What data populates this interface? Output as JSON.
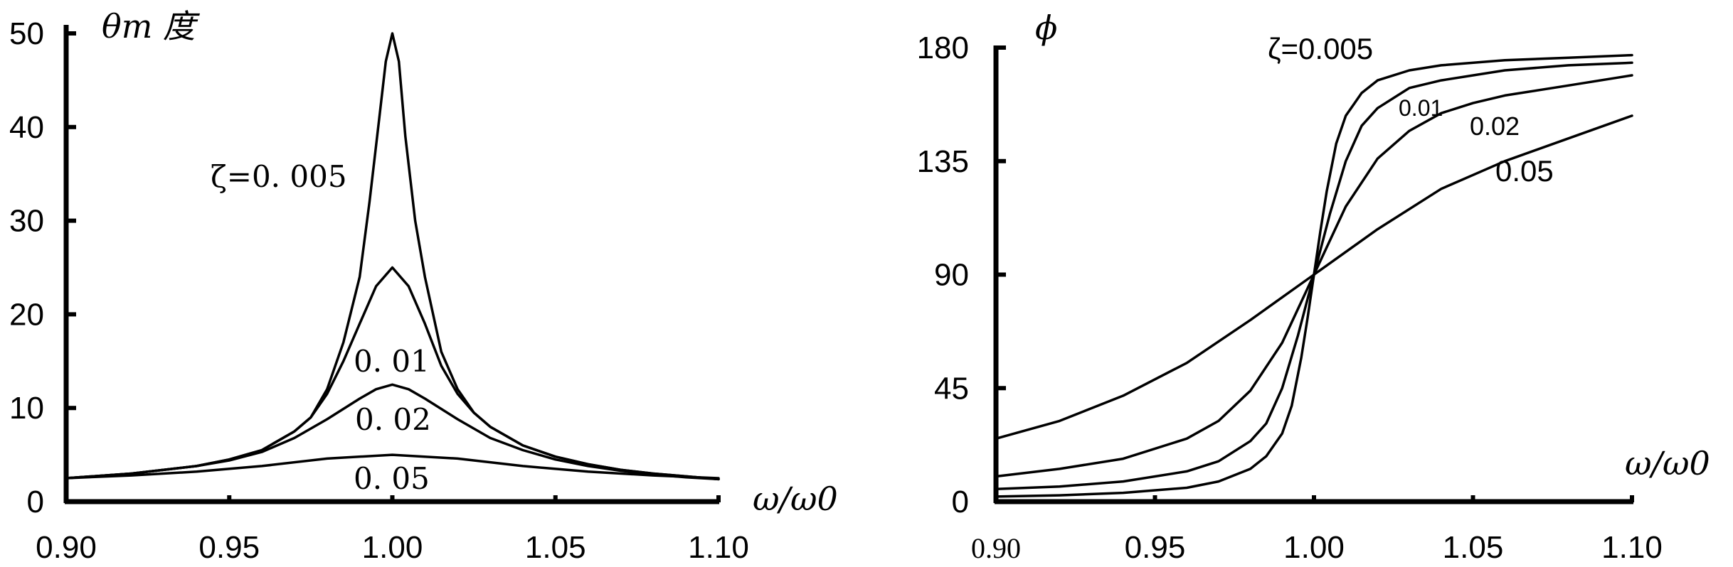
{
  "chart_data": [
    {
      "type": "line",
      "ylabel": "θm 度",
      "xlabel": "ω/ω0",
      "xlim": [
        0.9,
        1.1
      ],
      "ylim": [
        0,
        50
      ],
      "x_ticks": [
        "0.90",
        "0.95",
        "1.00",
        "1.05",
        "1.10"
      ],
      "y_ticks": [
        "0",
        "10",
        "20",
        "30",
        "40",
        "50"
      ],
      "grid": false,
      "series": [
        {
          "name": "ζ=0.005",
          "label": "ζ=0. 005",
          "x": [
            0.9,
            0.92,
            0.94,
            0.95,
            0.96,
            0.97,
            0.975,
            0.98,
            0.985,
            0.99,
            0.993,
            0.996,
            0.998,
            1.0,
            1.002,
            1.004,
            1.007,
            1.01,
            1.015,
            1.02,
            1.025,
            1.03,
            1.04,
            1.05,
            1.06,
            1.07,
            1.08,
            1.09,
            1.1
          ],
          "y": [
            2.5,
            3.0,
            3.8,
            4.5,
            5.5,
            7.5,
            9.0,
            12.0,
            17.0,
            24.0,
            32.0,
            41.0,
            47.0,
            50.0,
            47.0,
            39.0,
            30.0,
            24.0,
            16.0,
            12.0,
            9.5,
            8.0,
            6.0,
            4.8,
            4.0,
            3.4,
            3.0,
            2.7,
            2.4
          ]
        },
        {
          "name": "0.01",
          "label": "0. 01",
          "x": [
            0.9,
            0.92,
            0.94,
            0.95,
            0.96,
            0.97,
            0.975,
            0.98,
            0.985,
            0.99,
            0.995,
            1.0,
            1.005,
            1.01,
            1.015,
            1.02,
            1.025,
            1.03,
            1.04,
            1.05,
            1.06,
            1.07,
            1.08,
            1.09,
            1.1
          ],
          "y": [
            2.5,
            3.0,
            3.8,
            4.5,
            5.5,
            7.5,
            9.0,
            11.5,
            15.0,
            19.0,
            23.0,
            25.0,
            23.0,
            19.0,
            14.5,
            11.5,
            9.5,
            8.0,
            6.0,
            4.8,
            4.0,
            3.4,
            3.0,
            2.7,
            2.4
          ]
        },
        {
          "name": "0.02",
          "label": "0. 02",
          "x": [
            0.9,
            0.92,
            0.94,
            0.95,
            0.96,
            0.97,
            0.98,
            0.99,
            0.995,
            1.0,
            1.005,
            1.01,
            1.02,
            1.03,
            1.04,
            1.05,
            1.06,
            1.07,
            1.08,
            1.09,
            1.1
          ],
          "y": [
            2.5,
            3.0,
            3.8,
            4.4,
            5.3,
            6.8,
            8.8,
            11.0,
            12.0,
            12.5,
            12.0,
            11.0,
            8.8,
            6.8,
            5.5,
            4.5,
            3.8,
            3.3,
            2.9,
            2.6,
            2.4
          ]
        },
        {
          "name": "0.05",
          "label": "0. 05",
          "x": [
            0.9,
            0.92,
            0.94,
            0.96,
            0.98,
            1.0,
            1.02,
            1.04,
            1.06,
            1.08,
            1.1
          ],
          "y": [
            2.5,
            2.8,
            3.2,
            3.8,
            4.6,
            5.0,
            4.6,
            3.8,
            3.2,
            2.8,
            2.5
          ]
        }
      ]
    },
    {
      "type": "line",
      "ylabel": "ϕ",
      "xlabel": "ω/ω0",
      "xlim": [
        0.9,
        1.1
      ],
      "ylim": [
        0,
        180
      ],
      "x_ticks": [
        "0.90",
        "0.95",
        "1.00",
        "1.05",
        "1.10"
      ],
      "y_ticks": [
        "0",
        "45",
        "90",
        "135",
        "180"
      ],
      "grid": false,
      "series": [
        {
          "name": "ζ=0.005",
          "label": "ζ=0.005",
          "x": [
            0.9,
            0.92,
            0.94,
            0.96,
            0.97,
            0.98,
            0.985,
            0.99,
            0.993,
            0.996,
            0.998,
            1.0,
            1.002,
            1.004,
            1.007,
            1.01,
            1.015,
            1.02,
            1.03,
            1.04,
            1.06,
            1.08,
            1.1
          ],
          "y": [
            2,
            2.5,
            3.5,
            5.5,
            8,
            13,
            18,
            27,
            38,
            57,
            73,
            90,
            107,
            123,
            142,
            153,
            162,
            167,
            171,
            173,
            175,
            176,
            177
          ]
        },
        {
          "name": "0.01",
          "label": "0.01",
          "x": [
            0.9,
            0.92,
            0.94,
            0.96,
            0.97,
            0.98,
            0.985,
            0.99,
            0.995,
            1.0,
            1.005,
            1.01,
            1.015,
            1.02,
            1.03,
            1.04,
            1.06,
            1.08,
            1.1
          ],
          "y": [
            5,
            6,
            8,
            12,
            16,
            24,
            31,
            45,
            66,
            90,
            114,
            135,
            149,
            156,
            164,
            167,
            171,
            173,
            174
          ]
        },
        {
          "name": "0.02",
          "label": "0.02",
          "x": [
            0.9,
            0.92,
            0.94,
            0.96,
            0.97,
            0.98,
            0.99,
            1.0,
            1.01,
            1.02,
            1.03,
            1.04,
            1.05,
            1.06,
            1.08,
            1.1
          ],
          "y": [
            10,
            13,
            17,
            25,
            32,
            44,
            63,
            90,
            117,
            136,
            147,
            154,
            158,
            161,
            165,
            169
          ]
        },
        {
          "name": "0.05",
          "label": "0.05",
          "x": [
            0.9,
            0.92,
            0.94,
            0.96,
            0.98,
            1.0,
            1.02,
            1.04,
            1.06,
            1.08,
            1.1
          ],
          "y": [
            25,
            32,
            42,
            55,
            72,
            90,
            108,
            124,
            135,
            144,
            153
          ]
        }
      ]
    }
  ]
}
